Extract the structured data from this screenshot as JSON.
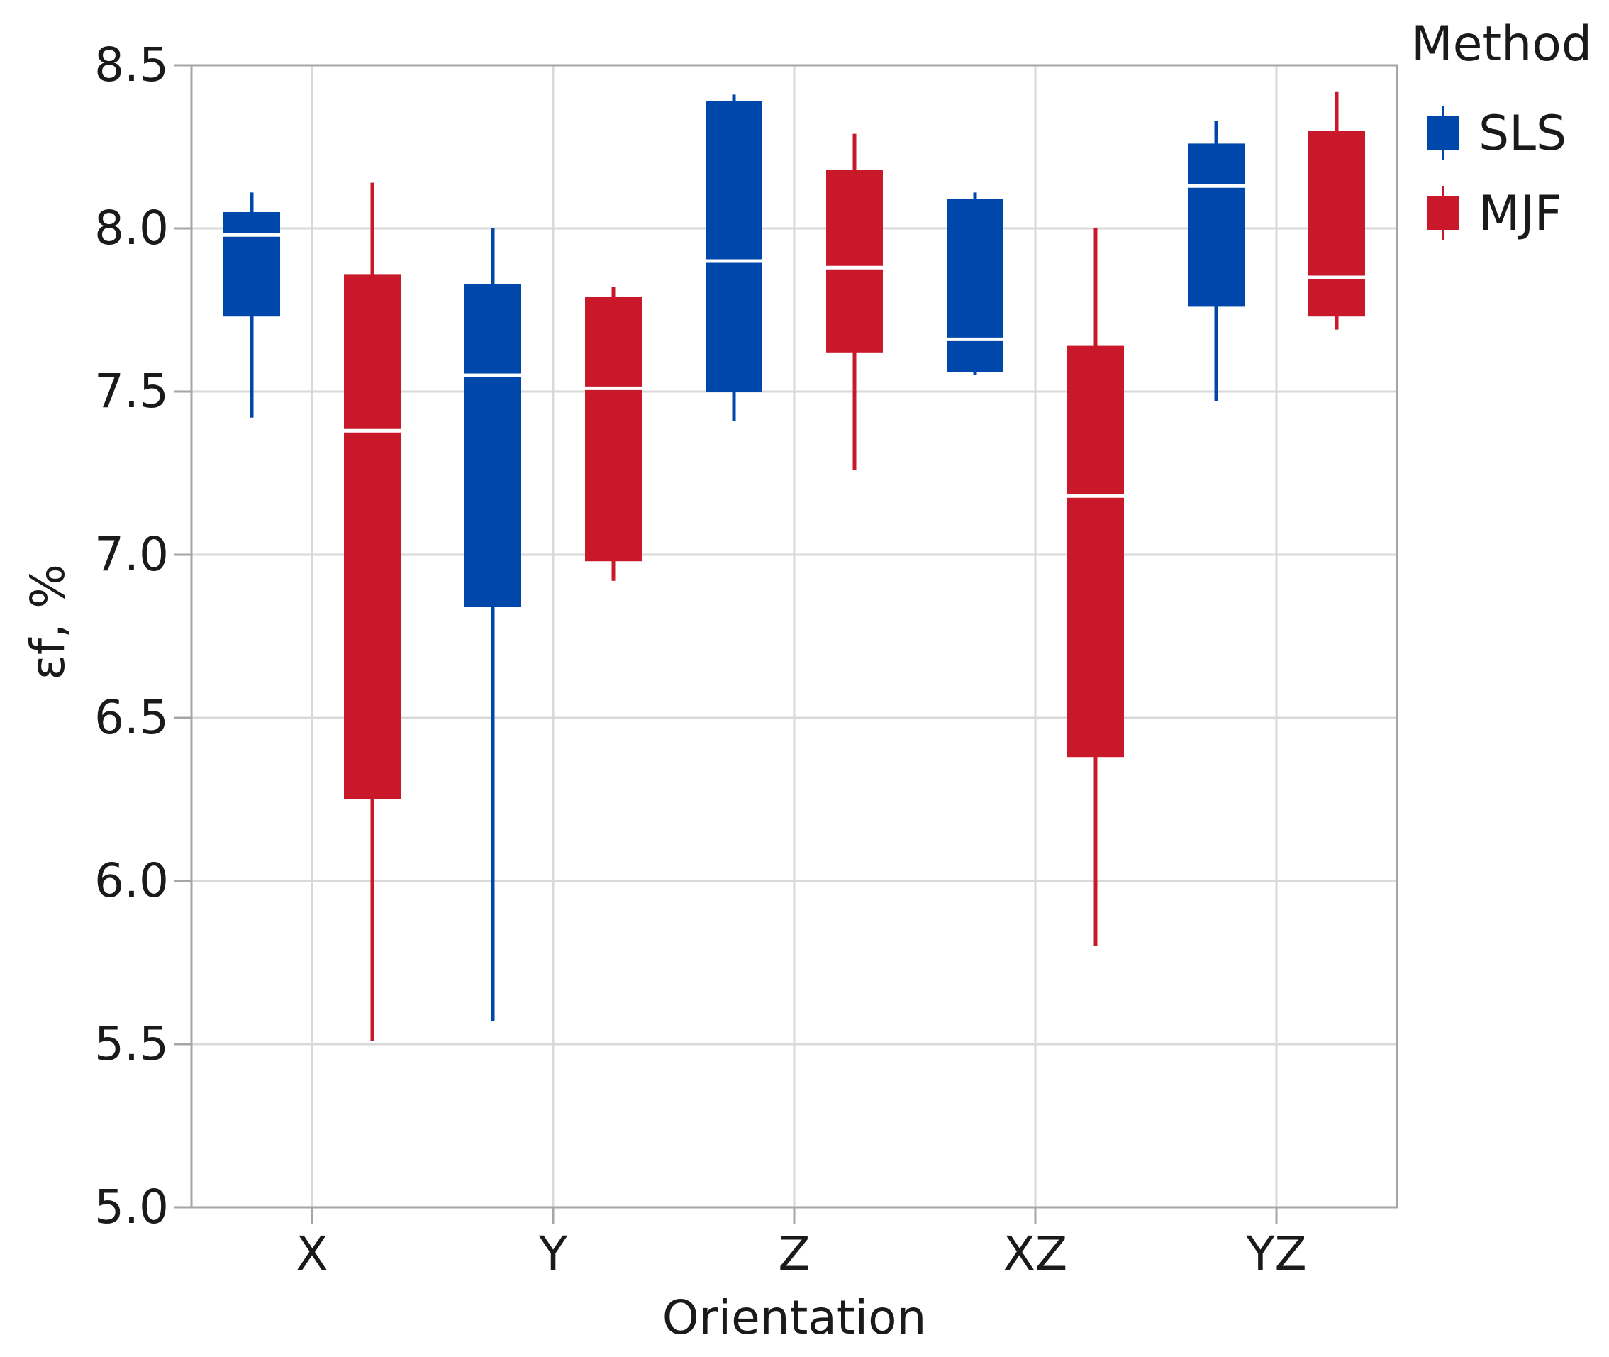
{
  "chart_data": {
    "type": "box",
    "title": "",
    "xlabel": "Orientation",
    "ylabel": "εf, %",
    "ylim": [
      5.0,
      8.5
    ],
    "yticks": [
      "5.0",
      "5.5",
      "6.0",
      "6.5",
      "7.0",
      "7.5",
      "8.0",
      "8.5"
    ],
    "categories": [
      "X",
      "Y",
      "Z",
      "XZ",
      "YZ"
    ],
    "grid": true,
    "legend": {
      "title": "Method",
      "position": "top-right outside",
      "entries": [
        "SLS",
        "MJF"
      ]
    },
    "series": [
      {
        "name": "SLS",
        "color": "#0047AB",
        "boxes": [
          {
            "category": "X",
            "min": 7.42,
            "q1": 7.73,
            "median": 7.98,
            "q3": 8.05,
            "max": 8.11
          },
          {
            "category": "Y",
            "min": 5.57,
            "q1": 6.84,
            "median": 7.55,
            "q3": 7.83,
            "max": 8.0
          },
          {
            "category": "Z",
            "min": 7.41,
            "q1": 7.5,
            "median": 7.9,
            "q3": 8.39,
            "max": 8.41
          },
          {
            "category": "XZ",
            "min": 7.55,
            "q1": 7.56,
            "median": 7.66,
            "q3": 8.09,
            "max": 8.11
          },
          {
            "category": "YZ",
            "min": 7.47,
            "q1": 7.76,
            "median": 8.13,
            "q3": 8.26,
            "max": 8.33
          }
        ]
      },
      {
        "name": "MJF",
        "color": "#C8182A",
        "boxes": [
          {
            "category": "X",
            "min": 5.51,
            "q1": 6.25,
            "median": 7.38,
            "q3": 7.86,
            "max": 8.14
          },
          {
            "category": "Y",
            "min": 6.92,
            "q1": 6.98,
            "median": 7.51,
            "q3": 7.79,
            "max": 7.82
          },
          {
            "category": "Z",
            "min": 7.26,
            "q1": 7.62,
            "median": 7.88,
            "q3": 8.18,
            "max": 8.29
          },
          {
            "category": "XZ",
            "min": 5.8,
            "q1": 6.38,
            "median": 7.18,
            "q3": 7.64,
            "max": 8.0
          },
          {
            "category": "YZ",
            "min": 7.69,
            "q1": 7.73,
            "median": 7.85,
            "q3": 8.3,
            "max": 8.42
          }
        ]
      }
    ]
  }
}
